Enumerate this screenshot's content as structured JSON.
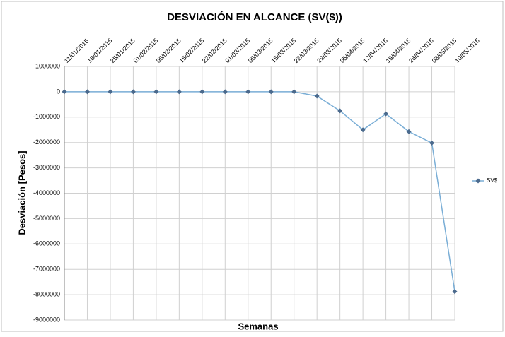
{
  "chart_data": {
    "type": "line",
    "title": "DESVIACIÓN EN ALCANCE (SV($))",
    "x_label": "Semanas",
    "y_label": "Desviación [Pesos]",
    "categories": [
      "11/01/2015",
      "18/01/2015",
      "25/01/2015",
      "01/02/2015",
      "08/02/2015",
      "15/02/2015",
      "22/02/2015",
      "01/03/2015",
      "08/03/2015",
      "15/03/2015",
      "22/03/2015",
      "29/03/2015",
      "05/04/2015",
      "12/04/2015",
      "19/04/2015",
      "26/04/2015",
      "03/05/2015",
      "10/05/2015"
    ],
    "series": [
      {
        "name": "SV$",
        "color": "#7aaed6",
        "marker_color": "#4b6a8d",
        "values": [
          0,
          0,
          0,
          0,
          0,
          0,
          0,
          0,
          0,
          0,
          0,
          -170000,
          -750000,
          -1500000,
          -870000,
          -1570000,
          -2020000,
          -7880000
        ]
      }
    ],
    "ylim": [
      -9000000,
      1000000
    ],
    "yticks": [
      -9000000,
      -8000000,
      -7000000,
      -6000000,
      -5000000,
      -4000000,
      -3000000,
      -2000000,
      -1000000,
      0,
      1000000
    ],
    "grid": true,
    "legend": "right"
  }
}
